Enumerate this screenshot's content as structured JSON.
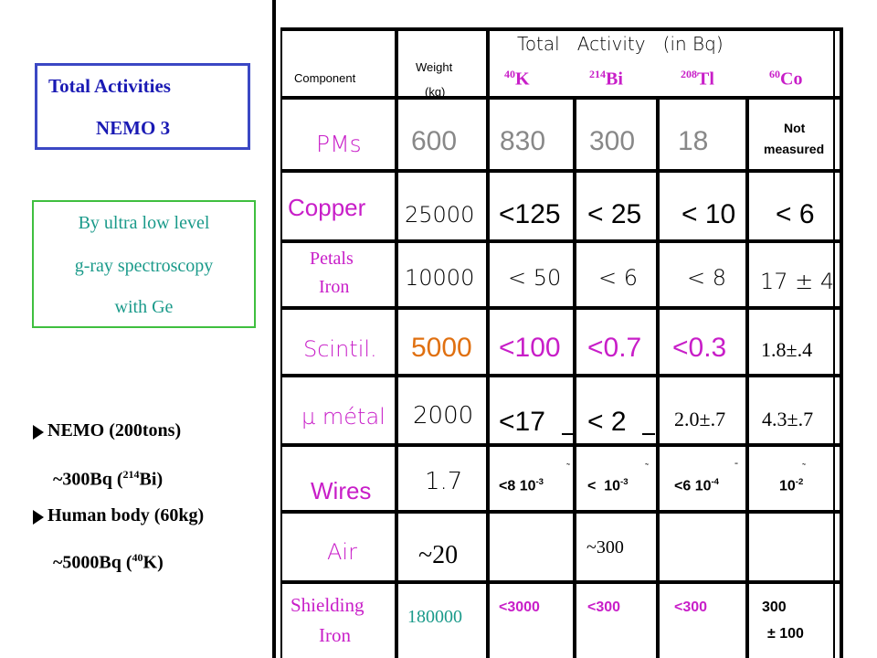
{
  "left_panel": {
    "title_line1": "Total Activities",
    "title_line2": "NEMO 3",
    "method_line1": "By ultra low level",
    "method_line2": "g-ray spectroscopy",
    "method_line3": "with Ge",
    "comparison": [
      {
        "label": "NEMO (200tons)",
        "value": "~300Bq (",
        "iso_mass": "214",
        "iso": "Bi",
        "close": ")"
      },
      {
        "label": "Human body (60kg)",
        "value": "~5000Bq (",
        "iso_mass": "40",
        "iso": "K",
        "close": ")"
      }
    ]
  },
  "table": {
    "header": {
      "component": "Component",
      "weight_line1": "Weight",
      "weight_line2": "(kg)",
      "activity_title": "Total   Activity   (in Bq)",
      "isotopes": [
        {
          "mass": "40",
          "symbol": "K"
        },
        {
          "mass": "214",
          "symbol": "Bi"
        },
        {
          "mass": "208",
          "symbol": "Tl"
        },
        {
          "mass": "60",
          "symbol": "Co"
        }
      ]
    },
    "rows": [
      {
        "component": "PMs",
        "weight": "600",
        "k": "830",
        "bi": "300",
        "tl": "18",
        "co_line1": "Not",
        "co_line2": "measured"
      },
      {
        "component": "Copper",
        "weight": "25000",
        "k": "<125",
        "bi": "< 25",
        "tl": "< 10",
        "co": "< 6"
      },
      {
        "component_line1": "Petals",
        "component_line2": "Iron",
        "weight": "10000",
        "k": "< 50",
        "bi": "< 6",
        "tl": "< 8",
        "co": "17 ± 4"
      },
      {
        "component": "Scintil.",
        "weight": "5000",
        "k": "<100",
        "bi": "<0.7",
        "tl": "<0.3",
        "co": "1.8±.4"
      },
      {
        "component": "µ métal",
        "weight": "2000",
        "k": "<17",
        "bi": "< 2",
        "tl": "2.0±.7",
        "co": "4.3±.7"
      },
      {
        "component": "Wires",
        "weight": "1.7",
        "k_base": "<8 10",
        "k_exp": "-3",
        "bi_base": "<  10",
        "bi_exp": "-3",
        "tl_base": "<6 10",
        "tl_exp": "-4",
        "co_base": "10",
        "co_exp": "-2"
      },
      {
        "component": "Air",
        "weight": "~20",
        "bi": "~300"
      },
      {
        "component_line1": "Shielding",
        "component_line2": "Iron",
        "weight": "180000",
        "k": "<3000",
        "bi": "<300",
        "tl": "<300",
        "co_line1": "300",
        "co_line2": "± 100"
      }
    ]
  }
}
